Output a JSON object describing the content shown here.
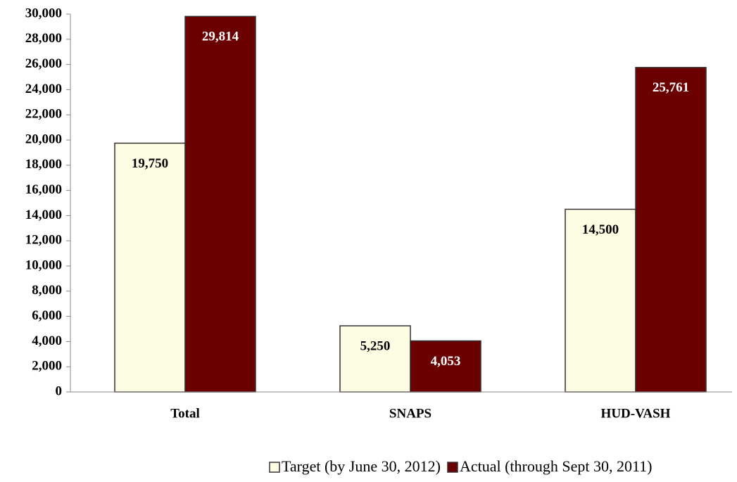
{
  "chart_data": {
    "type": "bar",
    "categories": [
      "Total",
      "SNAPS",
      "HUD-VASH"
    ],
    "series": [
      {
        "name": "Target (by June 30, 2012)",
        "color": "#fdfde4",
        "values": [
          19750,
          5250,
          14500
        ],
        "value_labels": [
          "19,750",
          "5,250",
          "14,500"
        ]
      },
      {
        "name": "Actual (through Sept 30, 2011)",
        "color": "#6b0000",
        "values": [
          29814,
          4053,
          25761
        ],
        "value_labels": [
          "29,814",
          "4,053",
          "25,761"
        ]
      }
    ],
    "ylim": [
      0,
      30000
    ],
    "yticks": [
      0,
      {
        "value": 2000,
        "label": "2,000"
      },
      {
        "value": 4000,
        "label": "4,000"
      },
      {
        "value": 6000,
        "label": "6,000"
      },
      {
        "value": 8000,
        "label": "8,000"
      },
      {
        "value": 10000,
        "label": "10,000"
      },
      {
        "value": 12000,
        "label": "12,000"
      },
      {
        "value": 14000,
        "label": "14,000"
      },
      {
        "value": 16000,
        "label": "16,000"
      },
      {
        "value": 18000,
        "label": "18,000"
      },
      {
        "value": 20000,
        "label": "20,000"
      },
      {
        "value": 22000,
        "label": "22,000"
      },
      {
        "value": 24000,
        "label": "24,000"
      },
      {
        "value": 26000,
        "label": "26,000"
      },
      {
        "value": 28000,
        "label": "28,000"
      },
      {
        "value": 30000,
        "label": "30,000"
      }
    ],
    "legend": "bottom"
  }
}
